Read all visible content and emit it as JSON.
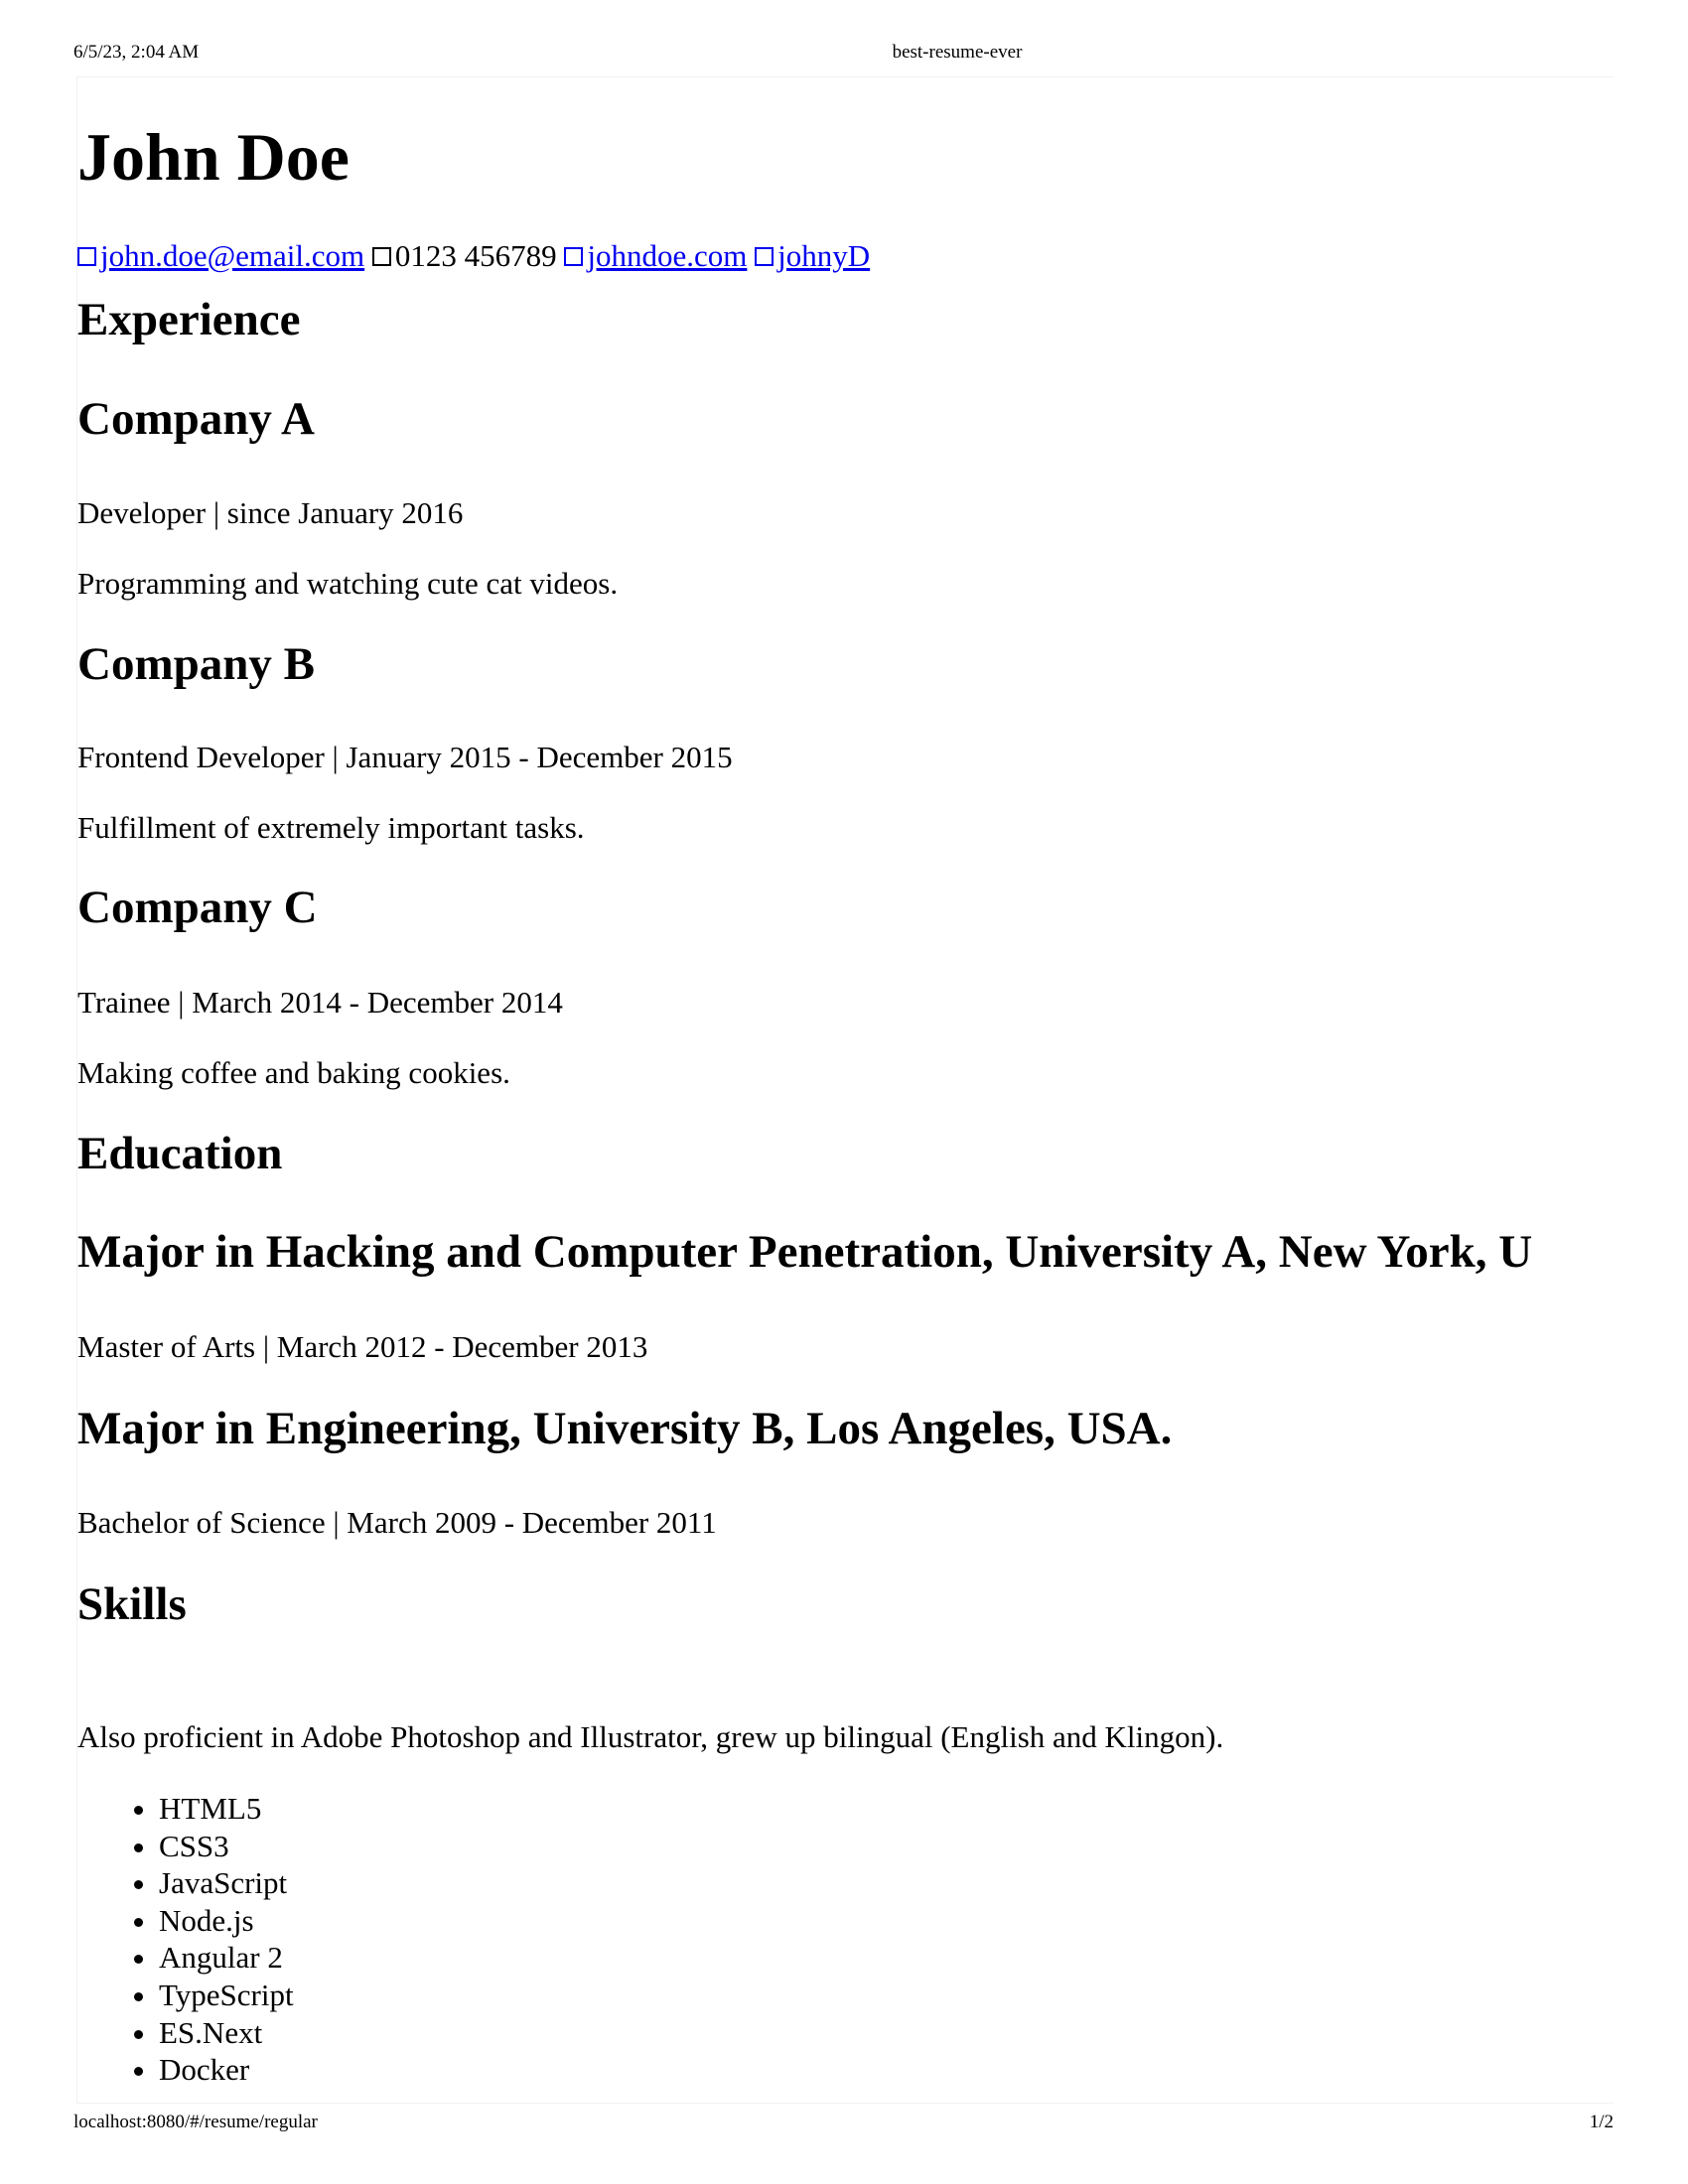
{
  "print": {
    "date": "6/5/23, 2:04 AM",
    "title": "best-resume-ever",
    "url": "localhost:8080/#/resume/regular",
    "page": "1/2"
  },
  "person": {
    "name": "John Doe",
    "email": "john.doe@email.com",
    "phone": "0123 456789",
    "website": "johndoe.com",
    "github": "johnyD"
  },
  "experience": {
    "heading": "Experience",
    "items": [
      {
        "company": "Company A",
        "role_period": "Developer | since January 2016",
        "description": "Programming and watching cute cat videos."
      },
      {
        "company": "Company B",
        "role_period": "Frontend Developer | January 2015 - December 2015",
        "description": "Fulfillment of extremely important tasks."
      },
      {
        "company": "Company C",
        "role_period": "Trainee | March 2014 - December 2014",
        "description": "Making coffee and baking cookies."
      }
    ]
  },
  "education": {
    "heading": "Education",
    "items": [
      {
        "title": "Major in Hacking and Computer Penetration, University A, New York, U",
        "degree_period": "Master of Arts | March 2012 - December 2013"
      },
      {
        "title": "Major in Engineering, University B, Los Angeles, USA.",
        "degree_period": "Bachelor of Science | March 2009 - December 2011"
      }
    ]
  },
  "skills": {
    "heading": "Skills",
    "description": "Also proficient in Adobe Photoshop and Illustrator, grew up bilingual (English and Klingon).",
    "items": [
      "HTML5",
      "CSS3",
      "JavaScript",
      "Node.js",
      "Angular 2",
      "TypeScript",
      "ES.Next",
      "Docker"
    ]
  },
  "icons": {
    "email": "email-icon",
    "phone": "phone-icon",
    "website": "website-icon",
    "github": "github-icon"
  },
  "colors": {
    "link": "#0000ee",
    "text": "#000000",
    "frame": "#f1f1f1"
  }
}
